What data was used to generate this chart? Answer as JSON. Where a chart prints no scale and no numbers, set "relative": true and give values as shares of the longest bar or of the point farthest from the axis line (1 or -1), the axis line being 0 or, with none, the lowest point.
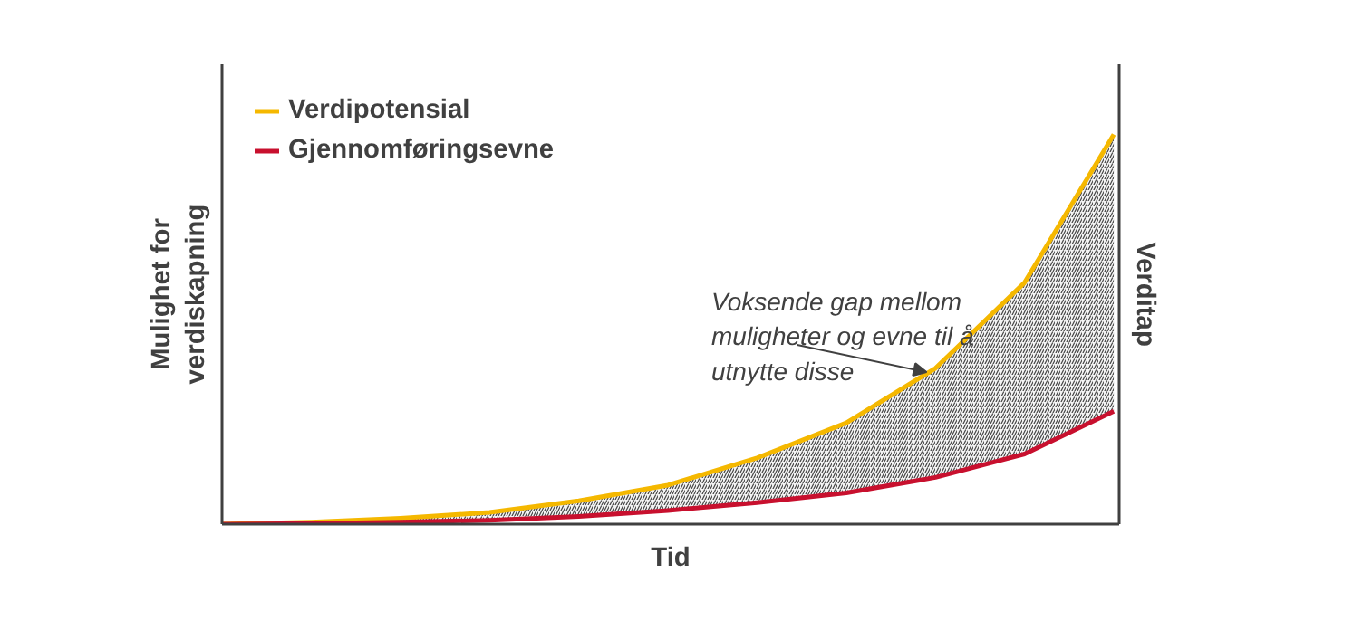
{
  "chart_data": {
    "type": "line",
    "relative": true,
    "legend": "top left",
    "xlabel": "Tid",
    "ylabel": "Mulighet for\nverdiskapning",
    "y2label": "Verditap",
    "categories": [
      null,
      null,
      null,
      null,
      null,
      null,
      null,
      null,
      null,
      null,
      null
    ],
    "series": [
      {
        "name": "Verdipotensial",
        "color": "#f5b800",
        "values": [
          0,
          0.005,
          0.015,
          0.03,
          0.06,
          0.1,
          0.17,
          0.26,
          0.4,
          0.62,
          1.0
        ],
        "lower": [
          0,
          0.002,
          0.005,
          0.01,
          0.02,
          0.035,
          0.055,
          0.08,
          0.12,
          0.18,
          0.29
        ],
        "upper": [
          0,
          0.005,
          0.015,
          0.03,
          0.06,
          0.1,
          0.17,
          0.26,
          0.4,
          0.62,
          1.0
        ]
      },
      {
        "name": "Gjennomføringsevne",
        "color": "#c8102e",
        "values": [
          0,
          0.002,
          0.005,
          0.01,
          0.02,
          0.035,
          0.055,
          0.08,
          0.12,
          0.18,
          0.29
        ]
      }
    ],
    "annotations": [
      "Voksende gap mellom muligheter og evne til å utnytte disse"
    ]
  }
}
